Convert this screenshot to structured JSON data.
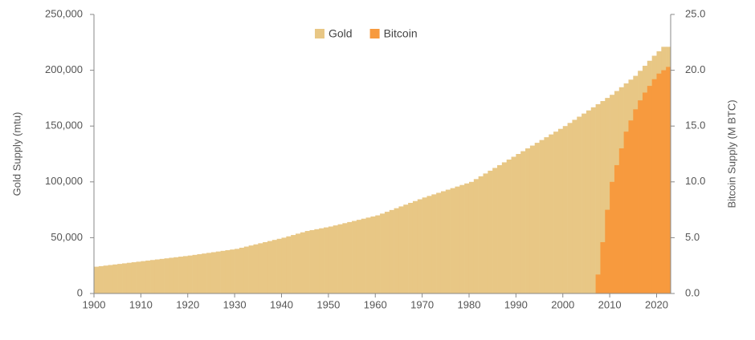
{
  "chart_data": {
    "type": "bar",
    "xlim": [
      1900,
      2023
    ],
    "xticks": [
      1900,
      1910,
      1920,
      1930,
      1940,
      1950,
      1960,
      1970,
      1980,
      1990,
      2000,
      2010,
      2020
    ],
    "ylim": [
      0,
      250000
    ],
    "yticks": [
      0,
      {
        "value": 50000,
        "label": "50,000"
      },
      {
        "value": 100000,
        "label": "100,000"
      },
      {
        "value": 150000,
        "label": "150,000"
      },
      {
        "value": 200000,
        "label": "200,000"
      },
      {
        "value": 250000,
        "label": "250,000"
      }
    ],
    "y2lim": [
      0,
      25
    ],
    "y2ticks": [
      {
        "value": 0,
        "label": "0.0"
      },
      {
        "value": 5,
        "label": "5.0"
      },
      {
        "value": 10,
        "label": "10.0"
      },
      {
        "value": 15,
        "label": "15.0"
      },
      {
        "value": 20,
        "label": "20.0"
      },
      {
        "value": 25,
        "label": "25.0"
      }
    ],
    "ylabel": "Gold Supply (mtu)",
    "y2label": "Bitcoin Supply (M BTC)",
    "legend": "top",
    "series": [
      {
        "name": "Gold",
        "color": "#e8c785",
        "x": [
          1900,
          1901,
          1902,
          1903,
          1904,
          1905,
          1906,
          1907,
          1908,
          1909,
          1910,
          1911,
          1912,
          1913,
          1914,
          1915,
          1916,
          1917,
          1918,
          1919,
          1920,
          1921,
          1922,
          1923,
          1924,
          1925,
          1926,
          1927,
          1928,
          1929,
          1930,
          1931,
          1932,
          1933,
          1934,
          1935,
          1936,
          1937,
          1938,
          1939,
          1940,
          1941,
          1942,
          1943,
          1944,
          1945,
          1946,
          1947,
          1948,
          1949,
          1950,
          1951,
          1952,
          1953,
          1954,
          1955,
          1956,
          1957,
          1958,
          1959,
          1960,
          1961,
          1962,
          1963,
          1964,
          1965,
          1966,
          1967,
          1968,
          1969,
          1970,
          1971,
          1972,
          1973,
          1974,
          1975,
          1976,
          1977,
          1978,
          1979,
          1980,
          1981,
          1982,
          1983,
          1984,
          1985,
          1986,
          1987,
          1988,
          1989,
          1990,
          1991,
          1992,
          1993,
          1994,
          1995,
          1996,
          1997,
          1998,
          1999,
          2000,
          2001,
          2002,
          2003,
          2004,
          2005,
          2006,
          2007,
          2008,
          2009,
          2010,
          2011,
          2012,
          2013,
          2014,
          2015,
          2016,
          2017,
          2018,
          2019,
          2020,
          2021,
          2022
        ],
        "values": [
          24000,
          24500,
          25000,
          25500,
          26000,
          26500,
          27000,
          27500,
          28000,
          28500,
          29000,
          29500,
          30000,
          30500,
          31000,
          31500,
          32000,
          32500,
          33000,
          33500,
          34000,
          34600,
          35200,
          35800,
          36400,
          37000,
          37600,
          38200,
          38800,
          39400,
          40000,
          41000,
          42000,
          43000,
          44000,
          45000,
          46000,
          47000,
          48000,
          49000,
          50000,
          51200,
          52400,
          53600,
          54800,
          56000,
          56800,
          57600,
          58400,
          59200,
          60000,
          61000,
          62000,
          63000,
          64000,
          65000,
          66000,
          67000,
          68000,
          69000,
          70000,
          71600,
          73200,
          74800,
          76400,
          78000,
          79600,
          81200,
          82800,
          84400,
          86000,
          87400,
          88800,
          90200,
          91600,
          93000,
          94400,
          95800,
          97200,
          98600,
          100000,
          102500,
          105000,
          107500,
          110000,
          112500,
          115000,
          117500,
          120000,
          122500,
          125000,
          127500,
          130000,
          132500,
          135000,
          137500,
          140000,
          142500,
          145000,
          147500,
          150000,
          152800,
          155600,
          158400,
          161200,
          164000,
          166800,
          169600,
          172400,
          175200,
          178000,
          181400,
          184800,
          188200,
          191600,
          195000,
          199500,
          204000,
          208500,
          213000,
          217000,
          221000,
          221000
        ]
      },
      {
        "name": "Bitcoin",
        "color": "#f79a3e",
        "axis": "y2",
        "x": [
          2007,
          2008,
          2009,
          2010,
          2011,
          2012,
          2013,
          2014,
          2015,
          2016,
          2017,
          2018,
          2019,
          2020,
          2021,
          2022
        ],
        "values": [
          1.7,
          4.6,
          7.5,
          10,
          11.5,
          13,
          14.5,
          15.5,
          16.5,
          17.3,
          18,
          18.6,
          19.2,
          19.7,
          20,
          20.3
        ]
      }
    ]
  }
}
